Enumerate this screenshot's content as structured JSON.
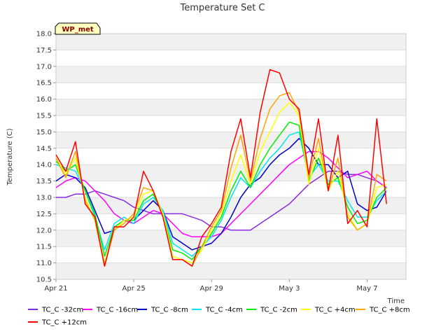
{
  "chart_data": {
    "type": "line",
    "title": "Temperature Set C",
    "xlabel": "Time",
    "ylabel": "Temperature (C)",
    "badge": "WP_met",
    "ylim": [
      10.5,
      18.0
    ],
    "yticks": [
      "10.5",
      "11.0",
      "11.5",
      "12.0",
      "12.5",
      "13.0",
      "13.5",
      "14.0",
      "14.5",
      "15.0",
      "15.5",
      "16.0",
      "16.5",
      "17.0",
      "17.5",
      "18.0"
    ],
    "xlim": [
      0,
      18
    ],
    "xticks": [
      {
        "label": "Apr 21",
        "x": 0
      },
      {
        "label": "Apr 25",
        "x": 4
      },
      {
        "label": "Apr 29",
        "x": 8
      },
      {
        "label": "May 3",
        "x": 12
      },
      {
        "label": "May 7",
        "x": 16
      }
    ],
    "x": [
      0,
      0.5,
      1,
      1.5,
      2,
      2.5,
      3,
      3.5,
      4,
      4.5,
      5,
      5.5,
      6,
      6.5,
      7,
      7.5,
      8,
      8.5,
      9,
      9.5,
      10,
      10.5,
      11,
      11.5,
      12,
      12.5,
      13,
      13.5,
      14,
      14.5,
      15,
      15.5,
      16,
      16.5,
      17
    ],
    "series": [
      {
        "name": "TC_C -32cm",
        "color": "#8a2be2",
        "values": [
          13.0,
          13.0,
          13.1,
          13.1,
          13.2,
          13.1,
          13.0,
          12.9,
          12.7,
          12.6,
          12.5,
          12.5,
          12.5,
          12.5,
          12.4,
          12.3,
          12.1,
          12.1,
          12.0,
          12.0,
          12.0,
          12.2,
          12.4,
          12.6,
          12.8,
          13.1,
          13.4,
          13.6,
          13.8,
          13.8,
          13.7,
          13.7,
          13.6,
          13.5,
          13.3
        ]
      },
      {
        "name": "TC_C -16cm",
        "color": "#ff00ff",
        "values": [
          13.3,
          13.5,
          13.6,
          13.5,
          13.2,
          12.9,
          12.5,
          12.3,
          12.2,
          12.4,
          12.6,
          12.5,
          12.2,
          11.9,
          11.8,
          11.8,
          11.8,
          11.9,
          12.2,
          12.5,
          12.8,
          13.1,
          13.4,
          13.7,
          14.0,
          14.2,
          14.4,
          14.4,
          14.2,
          13.9,
          13.6,
          13.7,
          13.8,
          13.5,
          13.3
        ]
      },
      {
        "name": "TC_C -8cm",
        "color": "#0000cd",
        "values": [
          13.5,
          13.7,
          13.6,
          13.3,
          12.6,
          11.9,
          12.0,
          12.3,
          12.3,
          12.6,
          12.9,
          12.6,
          11.8,
          11.6,
          11.4,
          11.5,
          11.6,
          11.9,
          12.4,
          13.0,
          13.4,
          13.6,
          14.0,
          14.3,
          14.5,
          14.8,
          14.5,
          14.0,
          14.0,
          13.6,
          13.8,
          12.8,
          12.6,
          12.7,
          13.2
        ]
      },
      {
        "name": "TC_C -4cm",
        "color": "#00e5ee",
        "values": [
          14.0,
          13.9,
          13.8,
          13.2,
          12.4,
          11.4,
          12.2,
          12.4,
          12.2,
          12.8,
          13.0,
          12.6,
          11.6,
          11.4,
          11.2,
          11.5,
          11.8,
          12.3,
          13.0,
          13.6,
          13.3,
          13.8,
          14.2,
          14.5,
          14.9,
          15.0,
          13.6,
          14.0,
          13.5,
          13.5,
          12.9,
          12.4,
          12.4,
          12.9,
          13.2
        ]
      },
      {
        "name": "TC_C -2cm",
        "color": "#00ee00",
        "values": [
          14.1,
          13.8,
          14.0,
          13.2,
          12.5,
          11.2,
          12.1,
          12.3,
          12.3,
          12.9,
          13.1,
          12.5,
          11.4,
          11.3,
          11.1,
          11.5,
          11.9,
          12.4,
          13.2,
          13.8,
          13.3,
          14.0,
          14.5,
          14.9,
          15.3,
          15.2,
          13.5,
          14.2,
          13.4,
          13.6,
          12.7,
          12.2,
          12.3,
          13.0,
          13.3
        ]
      },
      {
        "name": "TC_C +4cm",
        "color": "#ffff00",
        "values": [
          14.2,
          13.7,
          14.2,
          13.0,
          12.3,
          11.0,
          12.0,
          12.3,
          12.4,
          13.1,
          13.2,
          12.5,
          11.2,
          11.1,
          11.0,
          11.4,
          12.0,
          12.5,
          13.5,
          14.3,
          13.4,
          14.4,
          15.0,
          15.6,
          15.9,
          15.5,
          13.4,
          14.5,
          13.2,
          13.8,
          12.5,
          12.0,
          12.2,
          13.3,
          13.4
        ]
      },
      {
        "name": "TC_C +8cm",
        "color": "#ffa500",
        "values": [
          14.2,
          13.6,
          14.4,
          12.9,
          12.3,
          10.9,
          12.0,
          12.2,
          12.5,
          13.3,
          13.2,
          12.4,
          11.1,
          11.1,
          10.9,
          11.5,
          12.1,
          12.6,
          13.9,
          14.9,
          13.5,
          14.8,
          15.7,
          16.1,
          16.2,
          15.6,
          13.6,
          14.8,
          13.2,
          14.2,
          12.4,
          12.0,
          12.2,
          13.7,
          13.5
        ]
      },
      {
        "name": "TC_C +12cm",
        "color": "#ff0000",
        "values": [
          14.3,
          13.8,
          14.7,
          12.8,
          12.4,
          10.9,
          12.1,
          12.1,
          12.4,
          13.8,
          13.2,
          12.4,
          11.1,
          11.1,
          10.9,
          11.8,
          12.2,
          12.7,
          14.4,
          15.4,
          13.6,
          15.6,
          16.9,
          16.8,
          16.0,
          15.7,
          13.7,
          15.4,
          13.2,
          14.9,
          12.2,
          12.6,
          12.1,
          15.4,
          12.8
        ]
      }
    ],
    "grid": "horizontal bands",
    "legend_position": "bottom"
  }
}
